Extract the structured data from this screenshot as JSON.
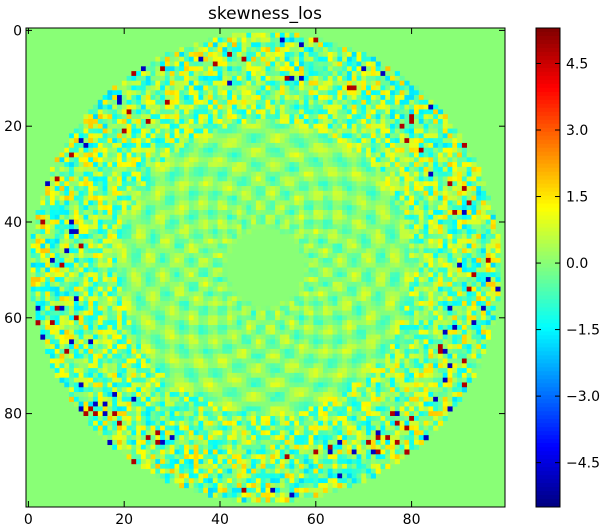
{
  "chart_data": {
    "type": "heatmap",
    "title": "skewness_los",
    "xlabel": "",
    "ylabel": "",
    "x_ticks": [
      0,
      20,
      40,
      60,
      80
    ],
    "y_ticks": [
      0,
      20,
      40,
      60,
      80
    ],
    "grid_size": [
      100,
      100
    ],
    "xlim": [
      -0.5,
      99.5
    ],
    "ylim": [
      99.5,
      -0.5
    ],
    "colormap": "jet",
    "color_range": [
      -5.5,
      5.3
    ],
    "colorbar_ticks": [
      4.5,
      3.0,
      1.5,
      0.0,
      -1.5,
      -3.0,
      -4.5
    ],
    "colorbar_tick_labels": [
      "4.5",
      "3.0",
      "1.5",
      "0.0",
      "−1.5",
      "−3.0",
      "−4.5"
    ],
    "background_value": 0.0,
    "disk": {
      "center": [
        49.5,
        49.5
      ],
      "outer_radius": 49,
      "inner_radius": 8
    },
    "data_note_values": {
      "inner_checker_amplitude": 0.9,
      "outer_noise_amplitude": 1.6,
      "extreme_values": [
        -4.8,
        4.8
      ]
    }
  }
}
